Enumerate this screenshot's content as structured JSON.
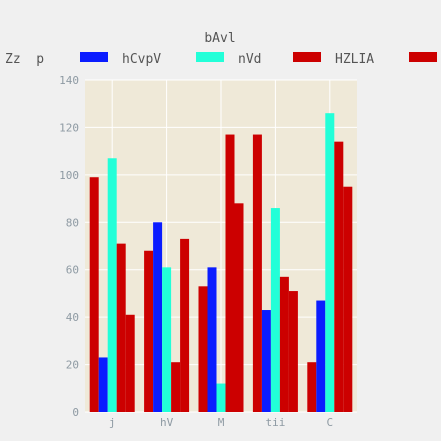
{
  "chart_data": {
    "type": "bar",
    "title": "bAvl",
    "legend_title": "Zz  p",
    "legend_placement": "top",
    "categories": [
      "j",
      "hV",
      "M",
      "tii",
      "C"
    ],
    "ylim": [
      0,
      140
    ],
    "yticks": [
      0,
      20,
      40,
      60,
      80,
      100,
      120,
      140
    ],
    "grid": true,
    "series": [
      {
        "name": "",
        "color": "#cc0000",
        "values": [
          99,
          68,
          53,
          117,
          21
        ]
      },
      {
        "name": "hCvpV",
        "color": "#0a1cff",
        "values": [
          23,
          80,
          61,
          43,
          47
        ]
      },
      {
        "name": "nVd",
        "color": "#22ffd8",
        "values": [
          107,
          61,
          12,
          86,
          126
        ]
      },
      {
        "name": "HZLIA",
        "color": "#cc0000",
        "values": [
          71,
          21,
          117,
          57,
          114
        ]
      },
      {
        "name": "",
        "color": "#cc0000",
        "values": [
          41,
          73,
          88,
          51,
          95
        ]
      }
    ],
    "colors": {
      "plot_background": "#efe9d8",
      "page_background": "#f0f0f0",
      "grid": "#ffffff",
      "tick_text": "#8e9aa3"
    }
  }
}
